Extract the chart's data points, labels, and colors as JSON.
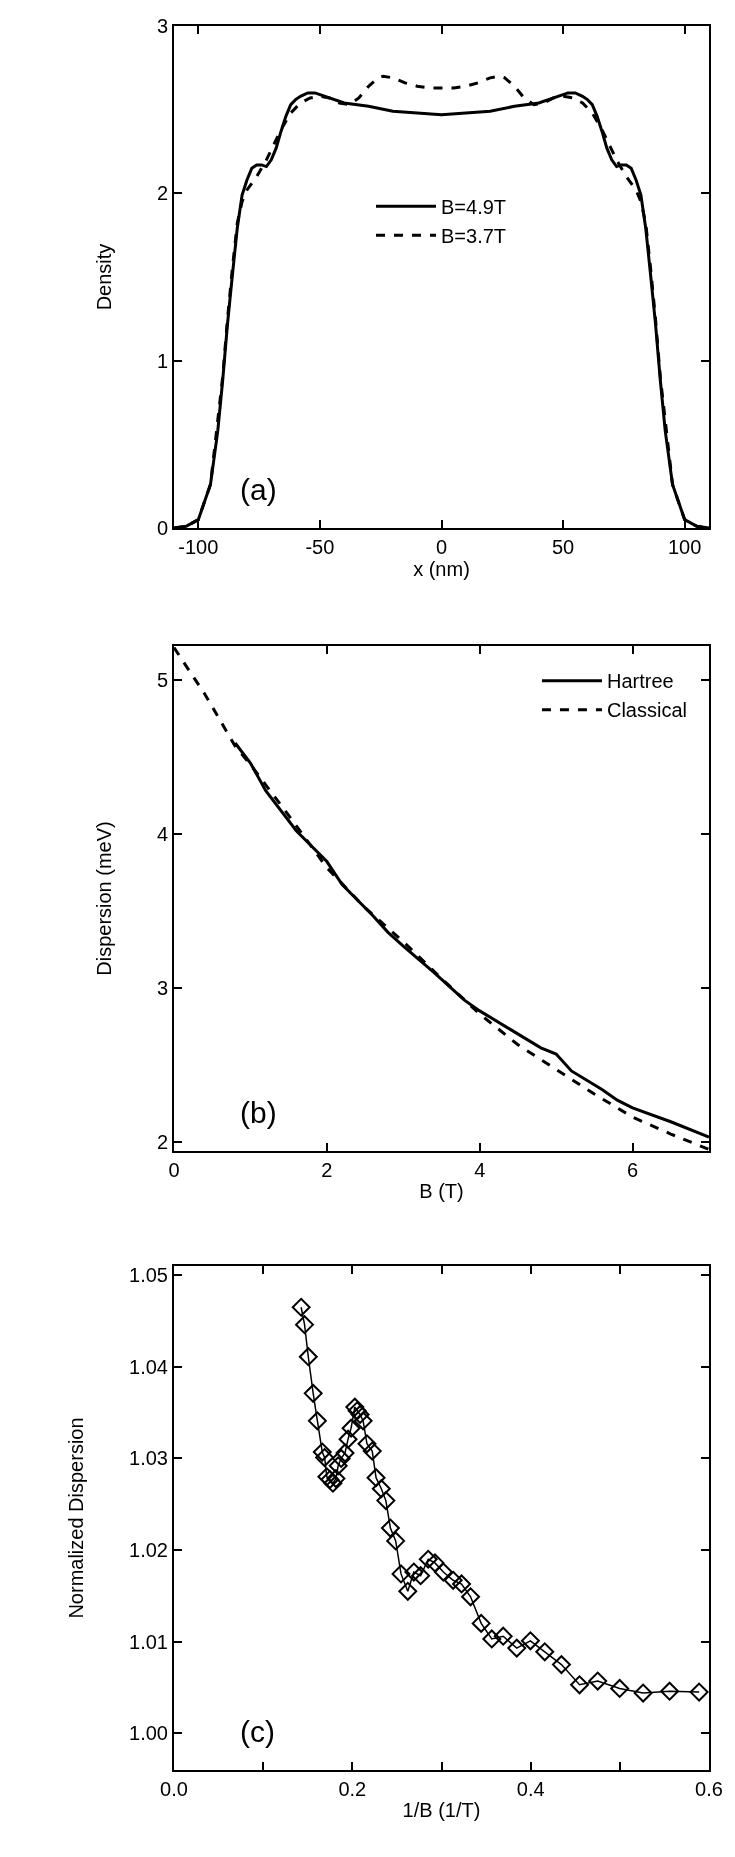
{
  "chart_data": [
    {
      "type": "line",
      "xlabel": "x (nm)",
      "ylabel": "Density",
      "annotations": [
        "(a)"
      ],
      "xlim": [
        -110,
        110
      ],
      "ylim": [
        0,
        3
      ],
      "xticks": [
        -100,
        -50,
        0,
        50,
        100
      ],
      "yticks": [
        0,
        1,
        2,
        3
      ],
      "legend": "top",
      "marker": "none",
      "series": [
        {
          "name": "B=4.9T",
          "color": "#000000",
          "line_style": "solid",
          "x": [
            -110,
            -105,
            -100,
            -95,
            -92,
            -90,
            -88,
            -86,
            -84,
            -82,
            -80,
            -78,
            -76,
            -74,
            -72,
            -70,
            -68,
            -66,
            -64,
            -62,
            -60,
            -58,
            -55,
            -52,
            -50,
            -40,
            -30,
            -20,
            -10,
            0,
            10,
            20,
            30,
            40,
            50,
            52,
            55,
            58,
            60,
            62,
            64,
            66,
            68,
            70,
            72,
            74,
            76,
            78,
            80,
            82,
            84,
            86,
            88,
            90,
            92,
            95,
            100,
            105,
            110
          ],
          "values": [
            0,
            0.01,
            0.05,
            0.26,
            0.58,
            0.88,
            1.22,
            1.51,
            1.79,
            1.99,
            2.08,
            2.15,
            2.17,
            2.17,
            2.16,
            2.2,
            2.27,
            2.37,
            2.46,
            2.53,
            2.56,
            2.58,
            2.6,
            2.6,
            2.59,
            2.54,
            2.52,
            2.49,
            2.48,
            2.47,
            2.48,
            2.49,
            2.52,
            2.54,
            2.59,
            2.6,
            2.6,
            2.58,
            2.56,
            2.53,
            2.46,
            2.37,
            2.27,
            2.2,
            2.16,
            2.17,
            2.17,
            2.15,
            2.08,
            1.99,
            1.79,
            1.51,
            1.22,
            0.88,
            0.58,
            0.26,
            0.05,
            0.01,
            0
          ]
        },
        {
          "name": "B=3.7T",
          "color": "#000000",
          "line_style": "dashed",
          "x": [
            -110,
            -105,
            -100,
            -95,
            -90,
            -88,
            -86,
            -84,
            -82,
            -80,
            -76,
            -72,
            -70,
            -66,
            -62,
            -58,
            -54,
            -50,
            -46,
            -42,
            -38,
            -34,
            -30,
            -26,
            -24,
            -20,
            -15,
            -10,
            -5,
            0,
            5,
            10,
            15,
            20,
            24,
            26,
            30,
            34,
            38,
            42,
            46,
            50,
            54,
            58,
            62,
            66,
            70,
            72,
            76,
            80,
            82,
            84,
            86,
            88,
            90,
            95,
            100,
            105,
            110
          ],
          "values": [
            0,
            0.01,
            0.05,
            0.26,
            0.9,
            1.25,
            1.55,
            1.82,
            1.95,
            2.02,
            2.1,
            2.2,
            2.26,
            2.38,
            2.48,
            2.54,
            2.57,
            2.58,
            2.57,
            2.54,
            2.53,
            2.57,
            2.64,
            2.69,
            2.7,
            2.69,
            2.66,
            2.64,
            2.63,
            2.63,
            2.63,
            2.64,
            2.66,
            2.69,
            2.7,
            2.69,
            2.64,
            2.57,
            2.53,
            2.54,
            2.57,
            2.58,
            2.57,
            2.54,
            2.48,
            2.38,
            2.26,
            2.2,
            2.1,
            2.02,
            1.95,
            1.82,
            1.55,
            1.25,
            0.9,
            0.26,
            0.05,
            0.01,
            0
          ]
        }
      ]
    },
    {
      "type": "line",
      "xlabel": "B (T)",
      "ylabel": "Dispersion (meV)",
      "annotations": [
        "(b)"
      ],
      "xlim": [
        0,
        7
      ],
      "ylim": [
        1.94,
        5.22
      ],
      "xticks": [
        0,
        2,
        4,
        6
      ],
      "yticks": [
        2,
        3,
        4,
        5
      ],
      "legend": "top right",
      "marker": "none",
      "series": [
        {
          "name": "Hartree",
          "color": "#000000",
          "line_style": "solid",
          "x": [
            0.8,
            1,
            1.2,
            1.6,
            2,
            2.2,
            2.6,
            2.8,
            3,
            3.4,
            3.8,
            4,
            4.4,
            4.8,
            5,
            5.2,
            5.6,
            5.8,
            6,
            6.5,
            7
          ],
          "values": [
            4.59,
            4.46,
            4.28,
            4.02,
            3.82,
            3.67,
            3.47,
            3.36,
            3.27,
            3.1,
            2.92,
            2.85,
            2.73,
            2.61,
            2.57,
            2.46,
            2.34,
            2.27,
            2.22,
            2.13,
            2.03
          ]
        },
        {
          "name": "Classical",
          "color": "#000000",
          "line_style": "dashed",
          "x": [
            0,
            0.4,
            0.8,
            1,
            1.5,
            2,
            2.5,
            3,
            3.5,
            4,
            4.5,
            5,
            5.5,
            6,
            6.5,
            7
          ],
          "values": [
            5.21,
            4.91,
            4.57,
            4.45,
            4.12,
            3.78,
            3.52,
            3.3,
            3.06,
            2.83,
            2.63,
            2.47,
            2.31,
            2.16,
            2.05,
            1.95
          ]
        }
      ]
    },
    {
      "type": "line",
      "xlabel": "1/B (1/T)",
      "ylabel": "Normalized Dispersion",
      "annotations": [
        "(c)"
      ],
      "xlim": [
        0,
        0.6
      ],
      "ylim": [
        0.996,
        1.051
      ],
      "xticks": [
        {
          "value": 0,
          "label": "0.0"
        },
        {
          "value": 0.1,
          "label": null
        },
        {
          "value": 0.2,
          "label": "0.2"
        },
        {
          "value": 0.3,
          "label": null
        },
        {
          "value": 0.4,
          "label": "0.4"
        },
        {
          "value": 0.5,
          "label": null
        },
        {
          "value": 0.6,
          "label": "0.6"
        }
      ],
      "yticks": [
        {
          "value": 1.0,
          "label": "1.00"
        },
        {
          "value": 1.01,
          "label": "1.01"
        },
        {
          "value": 1.02,
          "label": "1.02"
        },
        {
          "value": 1.03,
          "label": "1.03"
        },
        {
          "value": 1.04,
          "label": "1.04"
        },
        {
          "value": 1.05,
          "label": "1.05"
        }
      ],
      "legend": false,
      "marker": "diamond",
      "series": [
        {
          "color": "#000000",
          "line_style": "solid",
          "x": [
            0.1426,
            0.1464,
            0.1506,
            0.1561,
            0.1608,
            0.1663,
            0.1689,
            0.1714,
            0.1748,
            0.1782,
            0.1816,
            0.1841,
            0.1875,
            0.1918,
            0.1952,
            0.1986,
            0.2028,
            0.2054,
            0.2087,
            0.2121,
            0.2164,
            0.2223,
            0.2266,
            0.2325,
            0.2376,
            0.2427,
            0.2486,
            0.2546,
            0.2622,
            0.269,
            0.2766,
            0.2851,
            0.2927,
            0.3021,
            0.3131,
            0.3225,
            0.3326,
            0.3445,
            0.3564,
            0.3692,
            0.3844,
            0.3997,
            0.4158,
            0.4345,
            0.4548,
            0.4752,
            0.4998,
            0.5261,
            0.5558,
            0.5889
          ],
          "values": [
            1.0465,
            1.0446,
            1.0411,
            1.0371,
            1.0341,
            1.0307,
            1.0301,
            1.028,
            1.0277,
            1.0273,
            1.0278,
            1.0292,
            1.03,
            1.0306,
            1.0321,
            1.0333,
            1.0356,
            1.0352,
            1.0348,
            1.0341,
            1.0316,
            1.0308,
            1.0279,
            1.0267,
            1.0254,
            1.0224,
            1.021,
            1.0174,
            1.0155,
            1.0176,
            1.0172,
            1.019,
            1.0186,
            1.0176,
            1.0167,
            1.0163,
            1.0149,
            1.012,
            1.0103,
            1.0106,
            1.0093,
            1.0101,
            1.0089,
            1.0075,
            1.0053,
            1.0057,
            1.0049,
            1.0044,
            1.0046,
            1.0045
          ]
        }
      ]
    }
  ]
}
